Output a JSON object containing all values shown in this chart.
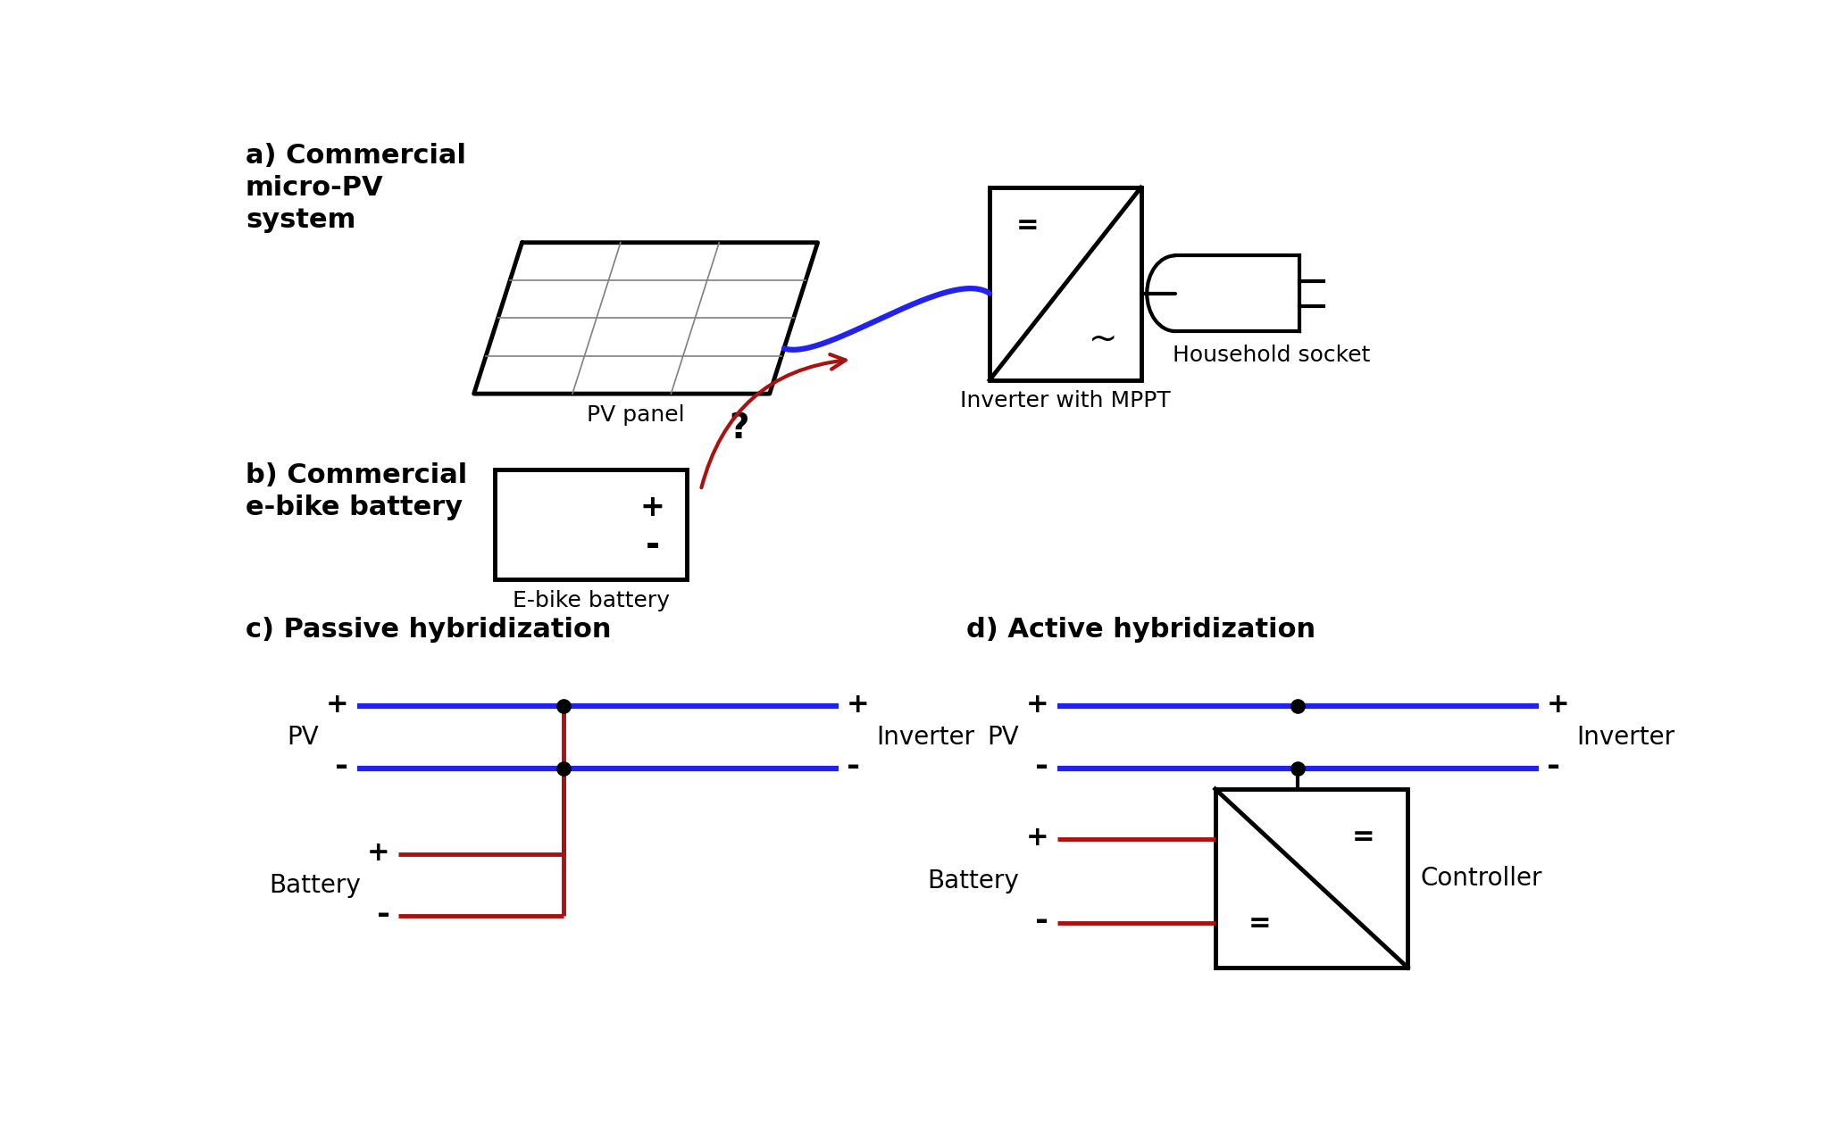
{
  "bg_color": "#ffffff",
  "title_a": "a) Commercial\nmicro-PV\nsystem",
  "title_b": "b) Commercial\ne-bike battery",
  "title_c": "c) Passive hybridization",
  "title_d": "d) Active hybridization",
  "label_pv_panel": "PV panel",
  "label_inverter_mppt": "Inverter with MPPT",
  "label_household": "Household socket",
  "label_ebike": "E-bike battery",
  "label_inverter_c": "Inverter",
  "label_inverter_d": "Inverter",
  "label_pv_c": "PV",
  "label_pv_d": "PV",
  "label_battery_c": "Battery",
  "label_battery_d": "Battery",
  "label_controller": "Controller",
  "color_blue": "#2222ee",
  "color_red": "#aa1111",
  "color_black": "#000000",
  "lw_thick": 3.0,
  "lw_wire": 2.5,
  "lw_bus": 4.5
}
